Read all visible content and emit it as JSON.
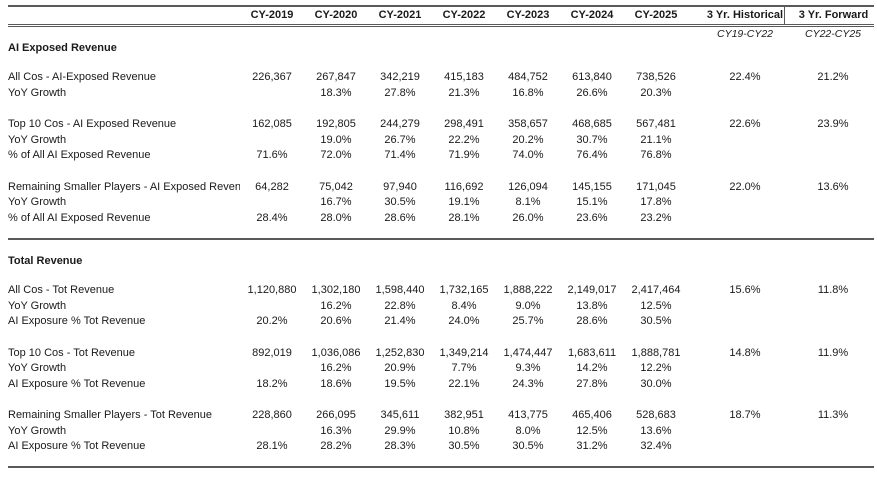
{
  "chart_data": {
    "type": "table",
    "columns": [
      "CY-2019",
      "CY-2020",
      "CY-2021",
      "CY-2022",
      "CY-2023",
      "CY-2024",
      "CY-2025"
    ],
    "summary_columns": [
      {
        "label": "3 Yr. Historical",
        "sublabel": "CY19-CY22"
      },
      {
        "label": "3 Yr. Forward",
        "sublabel": "CY22-CY25"
      }
    ],
    "sections": [
      {
        "title": "AI Exposed Revenue",
        "groups": [
          {
            "rows": [
              {
                "label": "All Cos - AI-Exposed Revenue",
                "values": [
                  "226,367",
                  "267,847",
                  "342,219",
                  "415,183",
                  "484,752",
                  "613,840",
                  "738,526"
                ],
                "historical": "22.4%",
                "forward": "21.2%"
              },
              {
                "label": "YoY Growth",
                "values": [
                  "",
                  "18.3%",
                  "27.8%",
                  "21.3%",
                  "16.8%",
                  "26.6%",
                  "20.3%"
                ],
                "historical": "",
                "forward": ""
              }
            ]
          },
          {
            "rows": [
              {
                "label": "Top 10 Cos - AI Exposed Revenue",
                "values": [
                  "162,085",
                  "192,805",
                  "244,279",
                  "298,491",
                  "358,657",
                  "468,685",
                  "567,481"
                ],
                "historical": "22.6%",
                "forward": "23.9%"
              },
              {
                "label": "YoY Growth",
                "values": [
                  "",
                  "19.0%",
                  "26.7%",
                  "22.2%",
                  "20.2%",
                  "30.7%",
                  "21.1%"
                ],
                "historical": "",
                "forward": ""
              },
              {
                "label": "% of All AI Exposed Revenue",
                "values": [
                  "71.6%",
                  "72.0%",
                  "71.4%",
                  "71.9%",
                  "74.0%",
                  "76.4%",
                  "76.8%"
                ],
                "historical": "",
                "forward": ""
              }
            ]
          },
          {
            "rows": [
              {
                "label": "Remaining Smaller Players - AI Exposed Revenu",
                "values": [
                  "64,282",
                  "75,042",
                  "97,940",
                  "116,692",
                  "126,094",
                  "145,155",
                  "171,045"
                ],
                "historical": "22.0%",
                "forward": "13.6%"
              },
              {
                "label": "YoY Growth",
                "values": [
                  "",
                  "16.7%",
                  "30.5%",
                  "19.1%",
                  "8.1%",
                  "15.1%",
                  "17.8%"
                ],
                "historical": "",
                "forward": ""
              },
              {
                "label": "% of All AI Exposed Revenue",
                "values": [
                  "28.4%",
                  "28.0%",
                  "28.6%",
                  "28.1%",
                  "26.0%",
                  "23.6%",
                  "23.2%"
                ],
                "historical": "",
                "forward": ""
              }
            ]
          }
        ]
      },
      {
        "title": "Total Revenue",
        "groups": [
          {
            "rows": [
              {
                "label": "All Cos - Tot Revenue",
                "values": [
                  "1,120,880",
                  "1,302,180",
                  "1,598,440",
                  "1,732,165",
                  "1,888,222",
                  "2,149,017",
                  "2,417,464"
                ],
                "historical": "15.6%",
                "forward": "11.8%"
              },
              {
                "label": "YoY Growth",
                "values": [
                  "",
                  "16.2%",
                  "22.8%",
                  "8.4%",
                  "9.0%",
                  "13.8%",
                  "12.5%"
                ],
                "historical": "",
                "forward": ""
              },
              {
                "label": "AI Exposure % Tot Revenue",
                "values": [
                  "20.2%",
                  "20.6%",
                  "21.4%",
                  "24.0%",
                  "25.7%",
                  "28.6%",
                  "30.5%"
                ],
                "historical": "",
                "forward": ""
              }
            ]
          },
          {
            "rows": [
              {
                "label": "Top 10 Cos - Tot Revenue",
                "values": [
                  "892,019",
                  "1,036,086",
                  "1,252,830",
                  "1,349,214",
                  "1,474,447",
                  "1,683,611",
                  "1,888,781"
                ],
                "historical": "14.8%",
                "forward": "11.9%"
              },
              {
                "label": "YoY Growth",
                "values": [
                  "",
                  "16.2%",
                  "20.9%",
                  "7.7%",
                  "9.3%",
                  "14.2%",
                  "12.2%"
                ],
                "historical": "",
                "forward": ""
              },
              {
                "label": "AI Exposure % Tot Revenue",
                "values": [
                  "18.2%",
                  "18.6%",
                  "19.5%",
                  "22.1%",
                  "24.3%",
                  "27.8%",
                  "30.0%"
                ],
                "historical": "",
                "forward": ""
              }
            ]
          },
          {
            "rows": [
              {
                "label": "Remaining Smaller Players - Tot Revenue",
                "values": [
                  "228,860",
                  "266,095",
                  "345,611",
                  "382,951",
                  "413,775",
                  "465,406",
                  "528,683"
                ],
                "historical": "18.7%",
                "forward": "11.3%"
              },
              {
                "label": "YoY Growth",
                "values": [
                  "",
                  "16.3%",
                  "29.9%",
                  "10.8%",
                  "8.0%",
                  "12.5%",
                  "13.6%"
                ],
                "historical": "",
                "forward": ""
              },
              {
                "label": "AI Exposure % Tot Revenue",
                "values": [
                  "28.1%",
                  "28.2%",
                  "28.3%",
                  "30.5%",
                  "30.5%",
                  "31.2%",
                  "32.4%"
                ],
                "historical": "",
                "forward": ""
              }
            ]
          }
        ]
      }
    ],
    "colors": {
      "line": "#595959",
      "text": "#1a1a1a"
    }
  }
}
